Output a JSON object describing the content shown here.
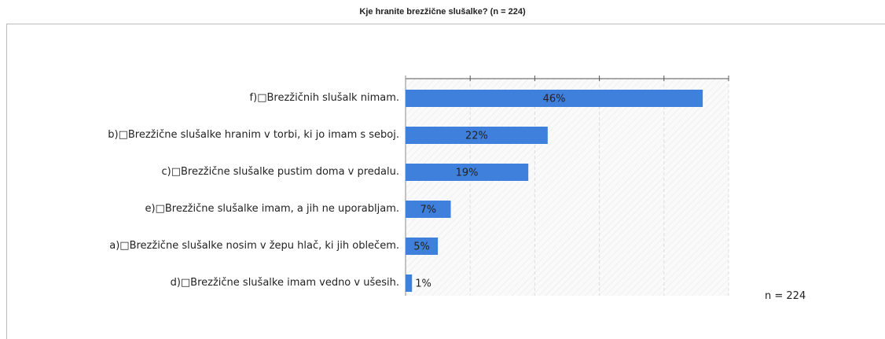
{
  "chart_data": {
    "type": "bar",
    "orientation": "horizontal",
    "title": "Kje hranite brezžične slušalke? (n = 224)",
    "categories": [
      "f)□Brezžičnih slušalk nimam.",
      "b)□Brezžične slušalke hranim v torbi, ki jo imam s seboj.",
      "c)□Brezžične slušalke pustim doma v predalu.",
      "e)□Brezžične slušalke imam, a jih ne uporabljam.",
      "a)□Brezžične slušalke nosim v žepu hlač, ki jih oblečem.",
      "d)□Brezžične slušalke imam vedno v ušesih."
    ],
    "values": [
      46,
      22,
      19,
      7,
      5,
      1
    ],
    "value_labels": [
      "46%",
      "22%",
      "19%",
      "7%",
      "5%",
      "1%"
    ],
    "color": "#3f80dc",
    "xlim": [
      0,
      50
    ],
    "xticks": [
      0,
      10,
      20,
      30,
      40,
      50
    ],
    "grid": true,
    "note": "n = 224"
  }
}
